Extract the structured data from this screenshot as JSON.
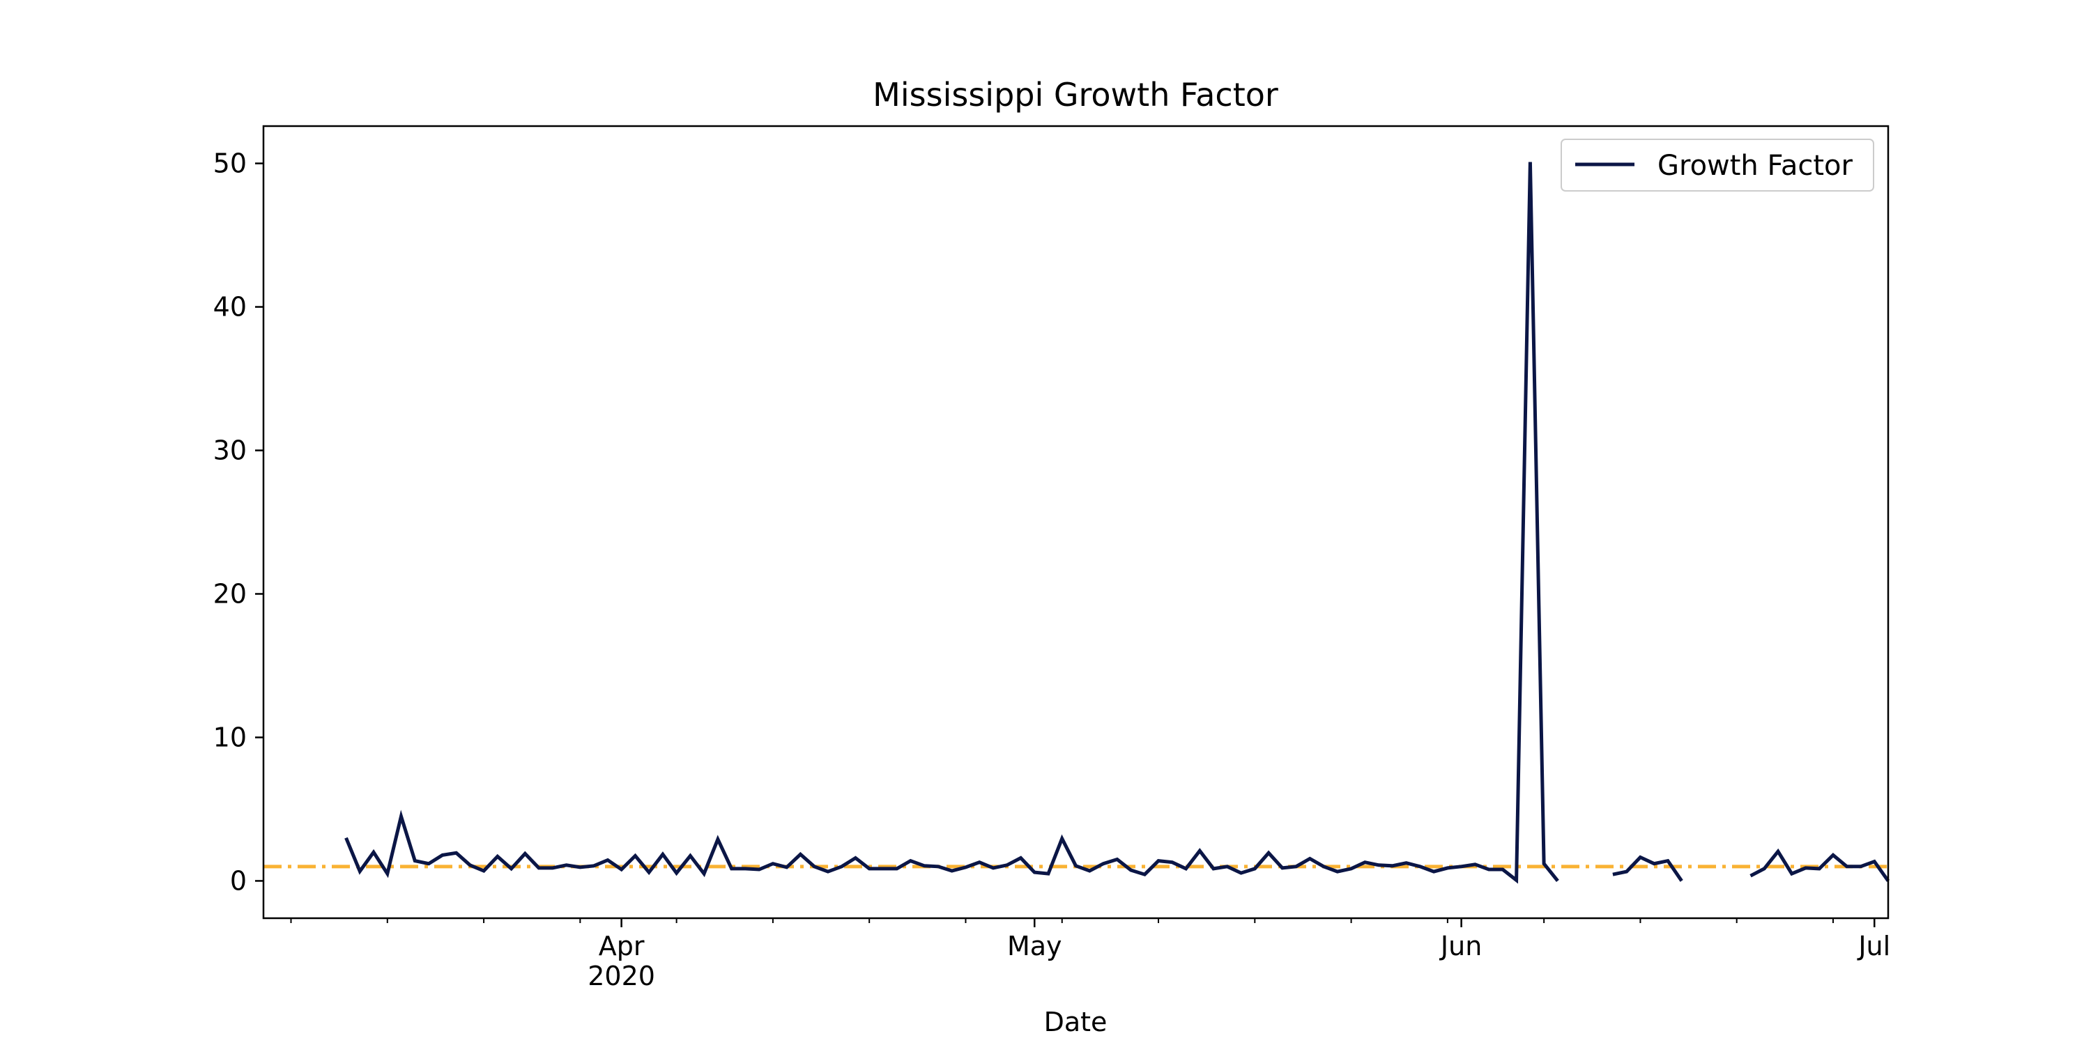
{
  "chart_data": {
    "type": "line",
    "title": "Mississippi Growth Factor",
    "xlabel": "Date",
    "ylabel": "",
    "xlim": [
      "2020-03-06",
      "2020-07-02"
    ],
    "ylim": [
      -2.6,
      52.6
    ],
    "y_ticks": [
      0,
      10,
      20,
      30,
      40,
      50
    ],
    "x_ticks": [
      {
        "date": "2020-04-01",
        "label": "Apr",
        "sublabel": "2020"
      },
      {
        "date": "2020-05-01",
        "label": "May",
        "sublabel": ""
      },
      {
        "date": "2020-06-01",
        "label": "Jun",
        "sublabel": ""
      },
      {
        "date": "2020-07-01",
        "label": "Jul",
        "sublabel": ""
      }
    ],
    "x_minor_ticks": [
      "2020-03-08",
      "2020-03-15",
      "2020-03-22",
      "2020-03-29",
      "2020-04-05",
      "2020-04-12",
      "2020-04-19",
      "2020-04-26",
      "2020-05-03",
      "2020-05-10",
      "2020-05-17",
      "2020-05-24",
      "2020-05-31",
      "2020-06-07",
      "2020-06-14",
      "2020-06-21",
      "2020-06-28"
    ],
    "grid": false,
    "legend": {
      "position": "upper right"
    },
    "reference_line": {
      "y": 1,
      "color": "#f9b233",
      "style": "dash-dot"
    },
    "series": [
      {
        "name": "Growth Factor",
        "color": "#0b1646",
        "points": [
          [
            "2020-03-12",
            3.0
          ],
          [
            "2020-03-13",
            0.67
          ],
          [
            "2020-03-14",
            2.0
          ],
          [
            "2020-03-15",
            0.5
          ],
          [
            "2020-03-16",
            4.5
          ],
          [
            "2020-03-17",
            1.4
          ],
          [
            "2020-03-18",
            1.2
          ],
          [
            "2020-03-19",
            1.8
          ],
          [
            "2020-03-20",
            1.95
          ],
          [
            "2020-03-21",
            1.1
          ],
          [
            "2020-03-22",
            0.7
          ],
          [
            "2020-03-23",
            1.7
          ],
          [
            "2020-03-24",
            0.85
          ],
          [
            "2020-03-25",
            1.9
          ],
          [
            "2020-03-26",
            0.9
          ],
          [
            "2020-03-27",
            0.9
          ],
          [
            "2020-03-28",
            1.1
          ],
          [
            "2020-03-29",
            0.95
          ],
          [
            "2020-03-30",
            1.05
          ],
          [
            "2020-03-31",
            1.45
          ],
          [
            "2020-04-01",
            0.8
          ],
          [
            "2020-04-02",
            1.75
          ],
          [
            "2020-04-03",
            0.6
          ],
          [
            "2020-04-04",
            1.85
          ],
          [
            "2020-04-05",
            0.55
          ],
          [
            "2020-04-06",
            1.75
          ],
          [
            "2020-04-07",
            0.5
          ],
          [
            "2020-04-08",
            2.9
          ],
          [
            "2020-04-09",
            0.85
          ],
          [
            "2020-04-10",
            0.85
          ],
          [
            "2020-04-11",
            0.8
          ],
          [
            "2020-04-12",
            1.2
          ],
          [
            "2020-04-13",
            0.95
          ],
          [
            "2020-04-14",
            1.85
          ],
          [
            "2020-04-15",
            1.0
          ],
          [
            "2020-04-16",
            0.65
          ],
          [
            "2020-04-17",
            1.0
          ],
          [
            "2020-04-18",
            1.6
          ],
          [
            "2020-04-19",
            0.85
          ],
          [
            "2020-04-20",
            0.85
          ],
          [
            "2020-04-21",
            0.85
          ],
          [
            "2020-04-22",
            1.4
          ],
          [
            "2020-04-23",
            1.05
          ],
          [
            "2020-04-24",
            1.0
          ],
          [
            "2020-04-25",
            0.7
          ],
          [
            "2020-04-26",
            0.95
          ],
          [
            "2020-04-27",
            1.3
          ],
          [
            "2020-04-28",
            0.9
          ],
          [
            "2020-04-29",
            1.1
          ],
          [
            "2020-04-30",
            1.6
          ],
          [
            "2020-05-01",
            0.6
          ],
          [
            "2020-05-02",
            0.5
          ],
          [
            "2020-05-03",
            2.95
          ],
          [
            "2020-05-04",
            1.05
          ],
          [
            "2020-05-05",
            0.7
          ],
          [
            "2020-05-06",
            1.2
          ],
          [
            "2020-05-07",
            1.5
          ],
          [
            "2020-05-08",
            0.75
          ],
          [
            "2020-05-09",
            0.45
          ],
          [
            "2020-05-10",
            1.4
          ],
          [
            "2020-05-11",
            1.3
          ],
          [
            "2020-05-12",
            0.85
          ],
          [
            "2020-05-13",
            2.1
          ],
          [
            "2020-05-14",
            0.85
          ],
          [
            "2020-05-15",
            1.0
          ],
          [
            "2020-05-16",
            0.55
          ],
          [
            "2020-05-17",
            0.85
          ],
          [
            "2020-05-18",
            1.95
          ],
          [
            "2020-05-19",
            0.9
          ],
          [
            "2020-05-20",
            1.0
          ],
          [
            "2020-05-21",
            1.55
          ],
          [
            "2020-05-22",
            1.0
          ],
          [
            "2020-05-23",
            0.65
          ],
          [
            "2020-05-24",
            0.85
          ],
          [
            "2020-05-25",
            1.3
          ],
          [
            "2020-05-26",
            1.1
          ],
          [
            "2020-05-27",
            1.05
          ],
          [
            "2020-05-28",
            1.25
          ],
          [
            "2020-05-29",
            1.0
          ],
          [
            "2020-05-30",
            0.65
          ],
          [
            "2020-05-31",
            0.9
          ],
          [
            "2020-06-01",
            1.0
          ],
          [
            "2020-06-02",
            1.15
          ],
          [
            "2020-06-03",
            0.8
          ],
          [
            "2020-06-04",
            0.8
          ],
          [
            "2020-06-05",
            0.05
          ],
          [
            "2020-06-06",
            50.1
          ],
          [
            "2020-06-07",
            1.2
          ],
          [
            "2020-06-08",
            0.0
          ],
          null,
          [
            "2020-06-12",
            0.45
          ],
          [
            "2020-06-13",
            0.65
          ],
          [
            "2020-06-14",
            1.65
          ],
          [
            "2020-06-15",
            1.2
          ],
          [
            "2020-06-16",
            1.4
          ],
          [
            "2020-06-17",
            0.0
          ],
          null,
          [
            "2020-06-22",
            0.35
          ],
          [
            "2020-06-23",
            0.85
          ],
          [
            "2020-06-24",
            2.05
          ],
          [
            "2020-06-25",
            0.5
          ],
          [
            "2020-06-26",
            0.9
          ],
          [
            "2020-06-27",
            0.85
          ],
          [
            "2020-06-28",
            1.8
          ],
          [
            "2020-06-29",
            1.0
          ],
          [
            "2020-06-30",
            1.0
          ],
          [
            "2020-07-01",
            1.35
          ],
          [
            "2020-07-02",
            0.0
          ]
        ]
      }
    ]
  }
}
